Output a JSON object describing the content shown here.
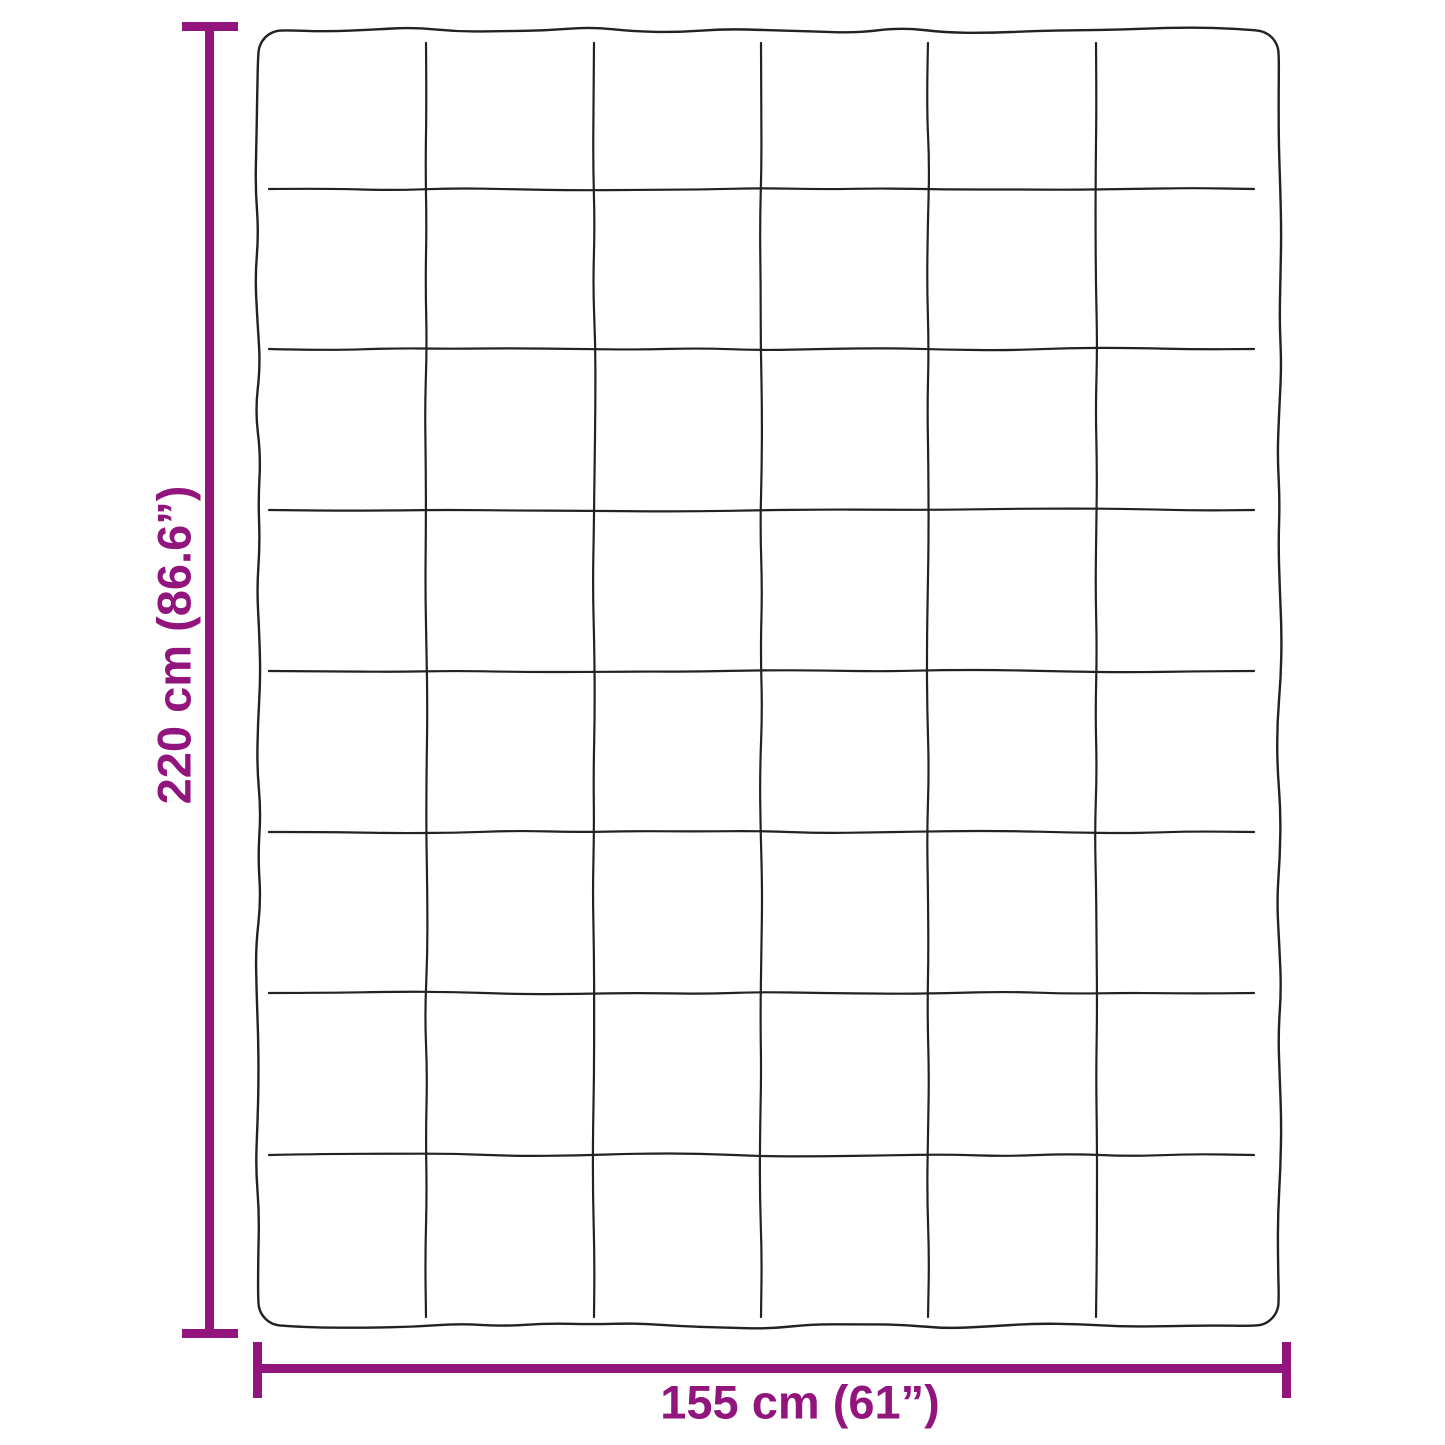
{
  "diagram": {
    "type": "product-dimension-diagram",
    "subject": "quilted blanket top view with stitched square pattern",
    "height_label": "220 cm (86.6”)",
    "width_label": "155 cm (61”)",
    "quilt_grid": {
      "columns": 6,
      "rows": 8
    },
    "colors": {
      "dimension_accent": "#92157E",
      "blanket_line": "#222222",
      "background": "#ffffff"
    }
  }
}
